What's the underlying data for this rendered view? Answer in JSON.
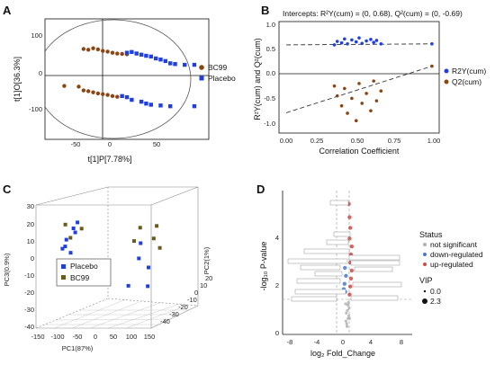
{
  "panels": {
    "A": {
      "label": "A",
      "xlabel": "t[1]P[7.78%]",
      "ylabel": "t[1]O[36.3%]",
      "xticks": [
        "-50",
        "0",
        "50"
      ],
      "yticks": [
        "100",
        "0",
        "-100"
      ],
      "legend": [
        {
          "name": "BC99",
          "color": "#8B4513"
        },
        {
          "name": "Placebo",
          "color": "#1F3FE0"
        }
      ]
    },
    "B": {
      "label": "B",
      "title": "Intercepts: R²Y(cum) = (0, 0.68), Q²(cum) = (0, -0.69)",
      "xlabel": "Correlation Coefficient",
      "ylabel": "R²Y(cum) and Q²(cum)",
      "xticks": [
        "0.00",
        "0.25",
        "0.50",
        "0.75",
        "1.00"
      ],
      "yticks": [
        "1.0",
        "0.5",
        "0.0",
        "-0.5",
        "-1.0"
      ],
      "legend": [
        {
          "name": "R2Y(cum)",
          "color": "#1F3FE0"
        },
        {
          "name": "Q2(cum)",
          "color": "#8B4513"
        }
      ]
    },
    "C": {
      "label": "C",
      "xlabel": "PC1(87%)",
      "ylabel": "PC3(0.9%)",
      "zlabel": "PC2(1%)",
      "xticks": [
        "-150",
        "-100",
        "-50",
        "0",
        "50",
        "100",
        "150"
      ],
      "yticks": [
        "30",
        "20",
        "10",
        "0",
        "-10",
        "-20",
        "-30",
        "-40"
      ],
      "zticks": [
        "20",
        "10",
        "0",
        "-10",
        "-20",
        "-30",
        "-40"
      ],
      "legend": [
        {
          "name": "Placebo",
          "color": "#1F3FE0"
        },
        {
          "name": "BC99",
          "color": "#6B5A1E"
        }
      ]
    },
    "D": {
      "label": "D",
      "xlabel": "log₂ Fold_Change",
      "ylabel": "-log₁₀ P-value",
      "xticks": [
        "-8",
        "-4",
        "0",
        "4",
        "8"
      ],
      "yticks": [
        "4",
        "2",
        "0"
      ],
      "status_title": "Status",
      "status_items": [
        "not significant",
        "down-regulated",
        "up-regulated"
      ],
      "vip_title": "VIP",
      "vip_items": [
        "0.0",
        "2.3"
      ]
    }
  },
  "chart_data": [
    {
      "panel": "A",
      "type": "scatter",
      "xlabel": "t[1]P[7.78%]",
      "ylabel": "t[1]O[36.3%]",
      "xlim": [
        -80,
        90
      ],
      "ylim": [
        -160,
        160
      ],
      "series": [
        {
          "name": "BC99",
          "color": "#8B4513",
          "points": [
            [
              -40,
              80
            ],
            [
              -35,
              78
            ],
            [
              -30,
              82
            ],
            [
              -25,
              79
            ],
            [
              -20,
              75
            ],
            [
              -15,
              73
            ],
            [
              -10,
              70
            ],
            [
              -5,
              68
            ],
            [
              0,
              67
            ],
            [
              5,
              66
            ],
            [
              -45,
              -20
            ],
            [
              -40,
              -30
            ],
            [
              -35,
              -32
            ],
            [
              -30,
              -35
            ],
            [
              -25,
              -38
            ],
            [
              -20,
              -40
            ],
            [
              -15,
              -42
            ],
            [
              -60,
              -18
            ],
            [
              -10,
              -45
            ],
            [
              -5,
              -47
            ]
          ]
        },
        {
          "name": "Placebo",
          "color": "#1F3FE0",
          "points": [
            [
              5,
              70
            ],
            [
              10,
              72
            ],
            [
              15,
              68
            ],
            [
              20,
              65
            ],
            [
              25,
              62
            ],
            [
              30,
              60
            ],
            [
              35,
              55
            ],
            [
              40,
              52
            ],
            [
              45,
              48
            ],
            [
              50,
              42
            ],
            [
              55,
              40
            ],
            [
              65,
              38
            ],
            [
              75,
              38
            ],
            [
              0,
              -45
            ],
            [
              5,
              -48
            ],
            [
              10,
              -55
            ],
            [
              20,
              -60
            ],
            [
              25,
              -65
            ],
            [
              30,
              -68
            ],
            [
              40,
              -70
            ],
            [
              50,
              -72
            ],
            [
              75,
              -72
            ]
          ]
        }
      ]
    },
    {
      "panel": "B",
      "type": "scatter",
      "title": "Intercepts: R²Y(cum) = (0, 0.68), Q²(cum) = (0, -0.69)",
      "xlabel": "Correlation Coefficient",
      "ylabel": "R²Y(cum) and Q²(cum)",
      "xlim": [
        -0.05,
        1.05
      ],
      "ylim": [
        -1.1,
        1.15
      ],
      "series": [
        {
          "name": "R2Y(cum)",
          "color": "#1F3FE0",
          "points": [
            [
              0.33,
              0.68
            ],
            [
              0.35,
              0.75
            ],
            [
              0.38,
              0.72
            ],
            [
              0.4,
              0.8
            ],
            [
              0.42,
              0.7
            ],
            [
              0.45,
              0.78
            ],
            [
              0.48,
              0.74
            ],
            [
              0.5,
              0.82
            ],
            [
              0.52,
              0.71
            ],
            [
              0.55,
              0.76
            ],
            [
              0.58,
              0.79
            ],
            [
              0.6,
              0.73
            ],
            [
              0.62,
              0.77
            ],
            [
              0.65,
              0.7
            ],
            [
              1.0,
              0.7
            ]
          ]
        },
        {
          "name": "Q2(cum)",
          "color": "#8B4513",
          "points": [
            [
              0.33,
              -0.15
            ],
            [
              0.35,
              -0.35
            ],
            [
              0.38,
              -0.55
            ],
            [
              0.4,
              -0.2
            ],
            [
              0.42,
              -0.7
            ],
            [
              0.45,
              -0.4
            ],
            [
              0.48,
              -0.85
            ],
            [
              0.5,
              -0.1
            ],
            [
              0.52,
              -0.5
            ],
            [
              0.55,
              -0.3
            ],
            [
              0.58,
              -0.65
            ],
            [
              0.6,
              -0.05
            ],
            [
              0.62,
              -0.45
            ],
            [
              0.65,
              -0.25
            ],
            [
              1.0,
              0.25
            ]
          ]
        }
      ],
      "regression_lines": [
        {
          "name": "R2Y(cum)",
          "intercept": 0.68,
          "end": [
            1.0,
            0.7
          ]
        },
        {
          "name": "Q2(cum)",
          "intercept": -0.69,
          "end": [
            1.0,
            0.25
          ]
        }
      ]
    },
    {
      "panel": "C",
      "type": "scatter",
      "xlabel": "PC1(87%)",
      "ylabel": "PC3(0.9%)",
      "zlabel": "PC2(1%)",
      "series": [
        {
          "name": "Placebo",
          "color": "#1F3FE0",
          "points": [
            [
              -55,
              12,
              0
            ],
            [
              -48,
              15,
              5
            ],
            [
              -52,
              8,
              -5
            ],
            [
              -45,
              18,
              2
            ],
            [
              -40,
              10,
              -8
            ],
            [
              -50,
              20,
              8
            ],
            [
              -42,
              5,
              -2
            ],
            [
              95,
              10,
              0
            ],
            [
              100,
              -5,
              5
            ],
            [
              105,
              -15,
              2
            ],
            [
              98,
              2,
              -3
            ],
            [
              92,
              -12,
              -10
            ]
          ]
        },
        {
          "name": "BC99",
          "color": "#6B5A1E",
          "points": [
            [
              -44,
              22,
              -6
            ],
            [
              -46,
              16,
              10
            ],
            [
              -38,
              14,
              -4
            ],
            [
              110,
              18,
              8
            ],
            [
              115,
              12,
              3
            ],
            [
              105,
              20,
              -5
            ],
            [
              112,
              5,
              10
            ],
            [
              108,
              14,
              -12
            ]
          ]
        }
      ]
    },
    {
      "panel": "D",
      "type": "scatter",
      "xlabel": "log₂ Fold_Change",
      "ylabel": "-log₁₀ P-value",
      "xlim": [
        -9,
        9
      ],
      "ylim": [
        -0.1,
        5.3
      ],
      "series": [
        {
          "name": "not significant",
          "color": "#b0b0b0",
          "points": [
            [
              -0.1,
              0.3
            ],
            [
              0.1,
              0.5
            ],
            [
              0.0,
              0.8
            ],
            [
              -0.2,
              0.4
            ],
            [
              0.2,
              0.6
            ],
            [
              0.05,
              1.0
            ],
            [
              -0.05,
              0.2
            ],
            [
              0.15,
              1.1
            ],
            [
              -0.15,
              0.7
            ],
            [
              0.25,
              0.9
            ],
            [
              0.3,
              0.5
            ],
            [
              -0.25,
              1.05
            ]
          ]
        },
        {
          "name": "down-regulated",
          "color": "#4a78d0",
          "points": [
            [
              -0.3,
              1.5
            ],
            [
              -0.4,
              1.8
            ],
            [
              -0.2,
              2.1
            ],
            [
              -0.5,
              1.6
            ],
            [
              -0.35,
              2.4
            ]
          ]
        },
        {
          "name": "up-regulated",
          "color": "#d04848",
          "points": [
            [
              0.3,
              1.4
            ],
            [
              0.4,
              1.7
            ],
            [
              0.5,
              2.0
            ],
            [
              0.6,
              2.3
            ],
            [
              0.4,
              2.6
            ],
            [
              0.5,
              2.9
            ],
            [
              0.6,
              3.2
            ],
            [
              0.3,
              3.5
            ],
            [
              0.4,
              3.9
            ],
            [
              0.3,
              4.3
            ],
            [
              0.2,
              4.8
            ]
          ]
        }
      ]
    }
  ]
}
